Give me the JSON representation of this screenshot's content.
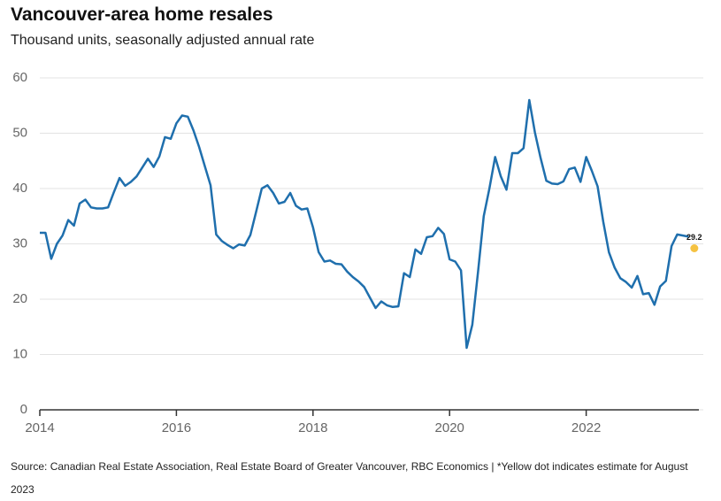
{
  "chart_data": {
    "type": "line",
    "title": "Vancouver-area home resales",
    "subtitle": "Thousand units, seasonally adjusted annual rate",
    "source": "Source: Canadian Real Estate Association, Real Estate Board of Greater Vancouver, RBC Economics | *Yellow dot indicates estimate for August 2023",
    "x": [
      2014,
      2014.083,
      2014.167,
      2014.25,
      2014.333,
      2014.417,
      2014.5,
      2014.583,
      2014.667,
      2014.75,
      2014.833,
      2014.917,
      2015,
      2015.083,
      2015.167,
      2015.25,
      2015.333,
      2015.417,
      2015.5,
      2015.583,
      2015.667,
      2015.75,
      2015.833,
      2015.917,
      2016,
      2016.083,
      2016.167,
      2016.25,
      2016.333,
      2016.417,
      2016.5,
      2016.583,
      2016.667,
      2016.75,
      2016.833,
      2016.917,
      2017,
      2017.083,
      2017.167,
      2017.25,
      2017.333,
      2017.417,
      2017.5,
      2017.583,
      2017.667,
      2017.75,
      2017.833,
      2017.917,
      2018,
      2018.083,
      2018.167,
      2018.25,
      2018.333,
      2018.417,
      2018.5,
      2018.583,
      2018.667,
      2018.75,
      2018.833,
      2018.917,
      2019,
      2019.083,
      2019.167,
      2019.25,
      2019.333,
      2019.417,
      2019.5,
      2019.583,
      2019.667,
      2019.75,
      2019.833,
      2019.917,
      2020,
      2020.083,
      2020.167,
      2020.25,
      2020.333,
      2020.417,
      2020.5,
      2020.583,
      2020.667,
      2020.75,
      2020.833,
      2020.917,
      2021,
      2021.083,
      2021.167,
      2021.25,
      2021.333,
      2021.417,
      2021.5,
      2021.583,
      2021.667,
      2021.75,
      2021.833,
      2021.917,
      2022,
      2022.083,
      2022.167,
      2022.25,
      2022.333,
      2022.417,
      2022.5,
      2022.583,
      2022.667,
      2022.75,
      2022.833,
      2022.917,
      2023,
      2023.083,
      2023.167,
      2023.25,
      2023.333,
      2023.417,
      2023.5
    ],
    "series": [
      {
        "color": "#1f6fad",
        "values": [
          32,
          32,
          27.3,
          30,
          31.5,
          34.3,
          33.3,
          37.3,
          38,
          36.6,
          36.4,
          36.4,
          36.6,
          39.3,
          41.9,
          40.5,
          41.2,
          42.2,
          43.8,
          45.4,
          43.9,
          45.8,
          49.3,
          49,
          51.8,
          53.2,
          53,
          50.5,
          47.5,
          44,
          40.6,
          31.7,
          30.5,
          29.8,
          29.2,
          29.9,
          29.7,
          31.6,
          35.8,
          40,
          40.6,
          39.2,
          37.3,
          37.6,
          39.2,
          36.9,
          36.2,
          36.4,
          33,
          28.5,
          26.8,
          27,
          26.4,
          26.3,
          25,
          24,
          23.2,
          22.2,
          20.3,
          18.4,
          19.6,
          18.9,
          18.6,
          18.7,
          24.7,
          24,
          29,
          28.2,
          31.2,
          31.4,
          32.9,
          31.8,
          27.2,
          26.8,
          25.2,
          11.2,
          15.4,
          25,
          35,
          40,
          45.7,
          42.2,
          39.8,
          46.4,
          46.4,
          47.3,
          56,
          50.1,
          45.5,
          41.4,
          40.9,
          40.8,
          41.3,
          43.5,
          43.8,
          41.2,
          45.7,
          43.2,
          40.4,
          34,
          28.5,
          25.7,
          23.8,
          23.1,
          22.1,
          24.2,
          20.9,
          21.1,
          19,
          22.3,
          23.3,
          29.6,
          31.7,
          31.5,
          31.3
        ]
      }
    ],
    "estimate": {
      "x": 2023.583,
      "value": 29.2,
      "color": "#f5c242"
    },
    "xlim": [
      2014,
      2023.65
    ],
    "xticks": [
      2014,
      2016,
      2018,
      2020,
      2022
    ],
    "ylim": [
      0,
      60
    ],
    "yticks": [
      0,
      10,
      20,
      30,
      40,
      50,
      60
    ],
    "grid": true
  }
}
